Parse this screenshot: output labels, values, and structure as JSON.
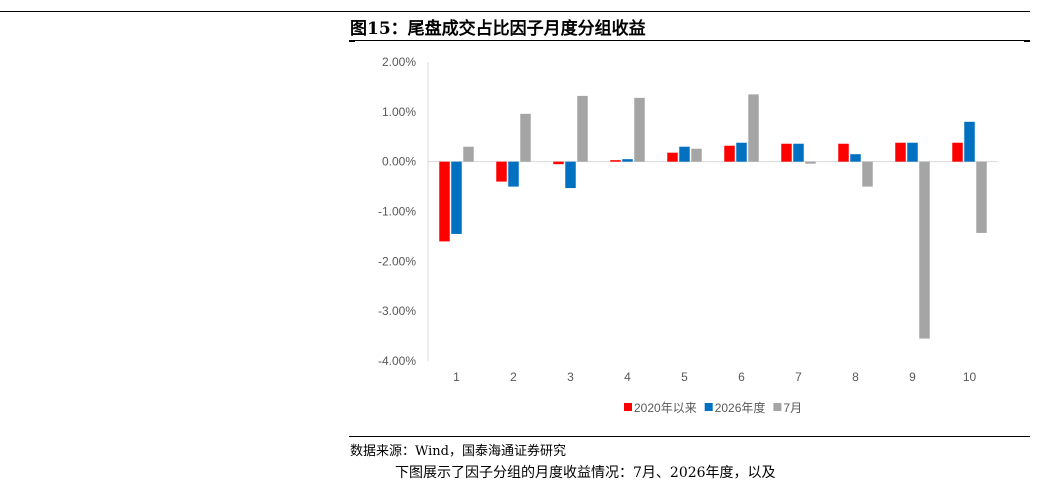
{
  "figure": {
    "title": "图15：尾盘成交占比因子月度分组收益",
    "source": "数据来源：Wind，国泰海通证券研究",
    "body_text": "下图展示了因子分组的月度收益情况：7月、2026年度，以及"
  },
  "chart_data": {
    "type": "bar",
    "categories": [
      "1",
      "2",
      "3",
      "4",
      "5",
      "6",
      "7",
      "8",
      "9",
      "10"
    ],
    "y_ticks": [
      "2.00%",
      "1.00%",
      "0.00%",
      "-1.00%",
      "-2.00%",
      "-3.00%",
      "-4.00%"
    ],
    "ylim": [
      -4.0,
      2.0
    ],
    "unit": "%",
    "legend_position": "bottom",
    "grid": false,
    "series": [
      {
        "name": "2020年以来",
        "color": "#ff0000",
        "values": [
          -1.6,
          -0.4,
          -0.05,
          0.03,
          0.18,
          0.32,
          0.36,
          0.36,
          0.38,
          0.38
        ]
      },
      {
        "name": "2026年度",
        "color": "#0070c0",
        "values": [
          -1.45,
          -0.5,
          -0.53,
          0.05,
          0.3,
          0.38,
          0.36,
          0.15,
          0.38,
          0.8
        ]
      },
      {
        "name": "7月",
        "color": "#a5a5a5",
        "values": [
          0.3,
          0.96,
          1.32,
          1.28,
          0.26,
          1.35,
          -0.04,
          -0.5,
          -3.55,
          -1.43
        ]
      }
    ]
  }
}
